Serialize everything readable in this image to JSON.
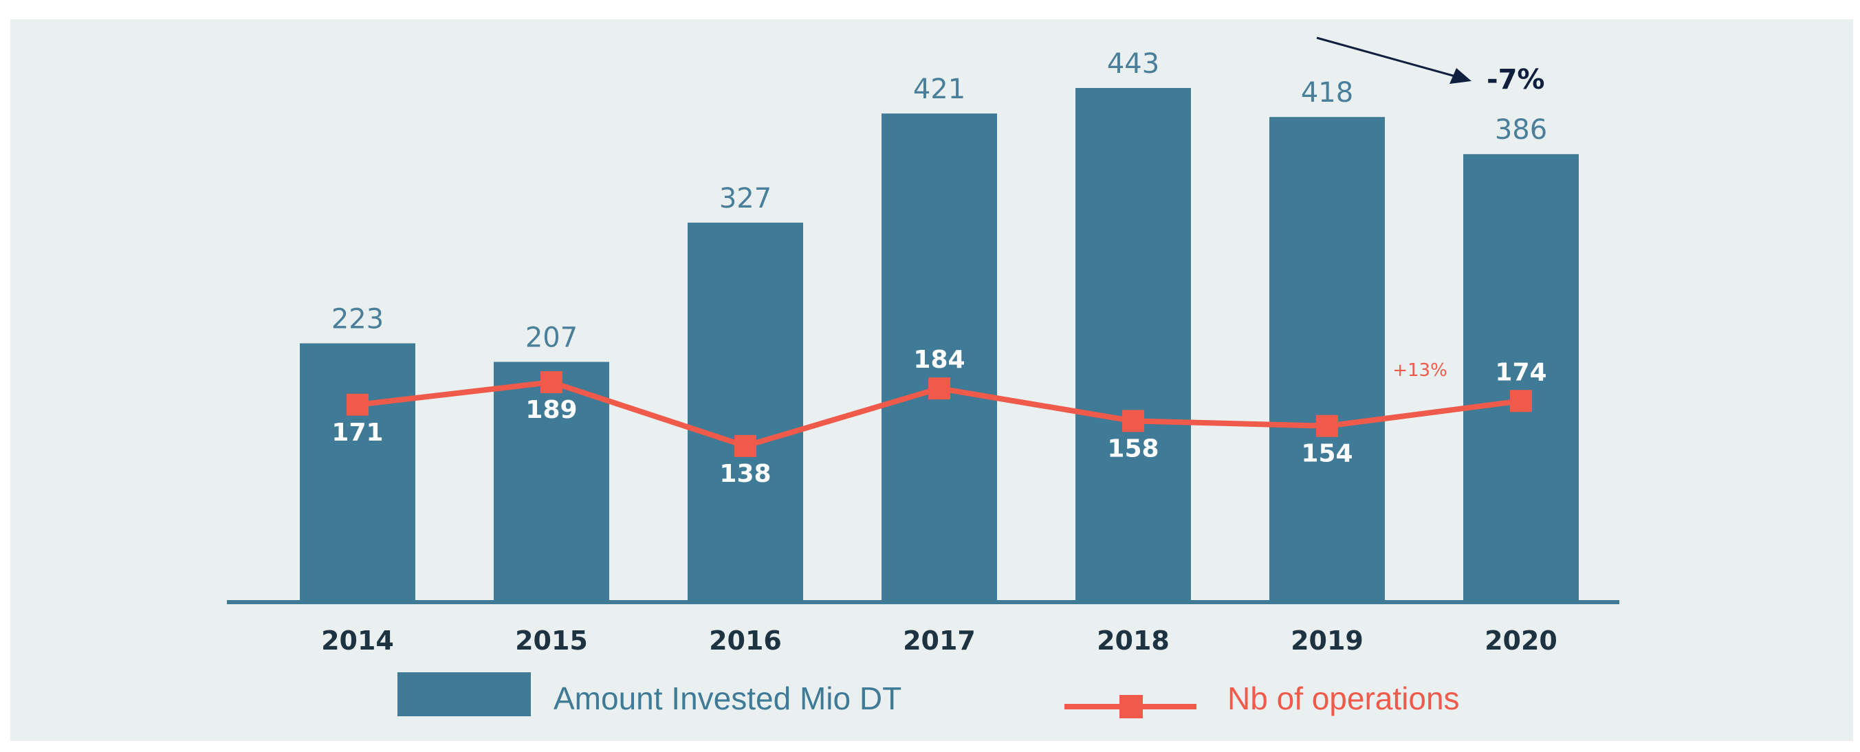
{
  "colors": {
    "background": "#ffffff",
    "panel": "#eaf0f0",
    "bar": "#3f7a97",
    "bar_label": "#4a7f9b",
    "line": "#f05a4a",
    "axis": "#3f7a97",
    "year_text": "#1e3342",
    "annotation_dark": "#0f1f3d"
  },
  "chart_data": {
    "type": "bar",
    "categories": [
      "2014",
      "2015",
      "2016",
      "2017",
      "2018",
      "2019",
      "2020"
    ],
    "series": [
      {
        "name": "Amount Invested Mio DT",
        "type": "bar",
        "values": [
          223,
          207,
          327,
          421,
          443,
          418,
          386
        ]
      },
      {
        "name": "Nb of operations",
        "type": "line",
        "values": [
          171,
          189,
          138,
          184,
          158,
          154,
          174
        ]
      }
    ],
    "bar_labels": [
      "223",
      "207",
      "327",
      "421",
      "443",
      "418",
      "386"
    ],
    "line_labels": [
      "171",
      "189",
      "138",
      "184",
      "158",
      "154",
      "174"
    ],
    "bar_ylim": [
      0,
      443
    ],
    "line_ylim": [
      0,
      189
    ],
    "annotations": [
      {
        "text": "-7%",
        "refers_to": "Amount Invested Mio DT",
        "category": "2020"
      },
      {
        "text": "+13%",
        "refers_to": "Nb of operations",
        "category": "2020"
      }
    ],
    "legend": {
      "position": "bottom",
      "items": [
        {
          "label": "Amount Invested Mio DT",
          "kind": "bar",
          "color": "#3f7a97"
        },
        {
          "label": "Nb of operations",
          "kind": "line-marker",
          "color": "#f05a4a"
        }
      ]
    },
    "title": "",
    "xlabel": "",
    "ylabel": ""
  }
}
